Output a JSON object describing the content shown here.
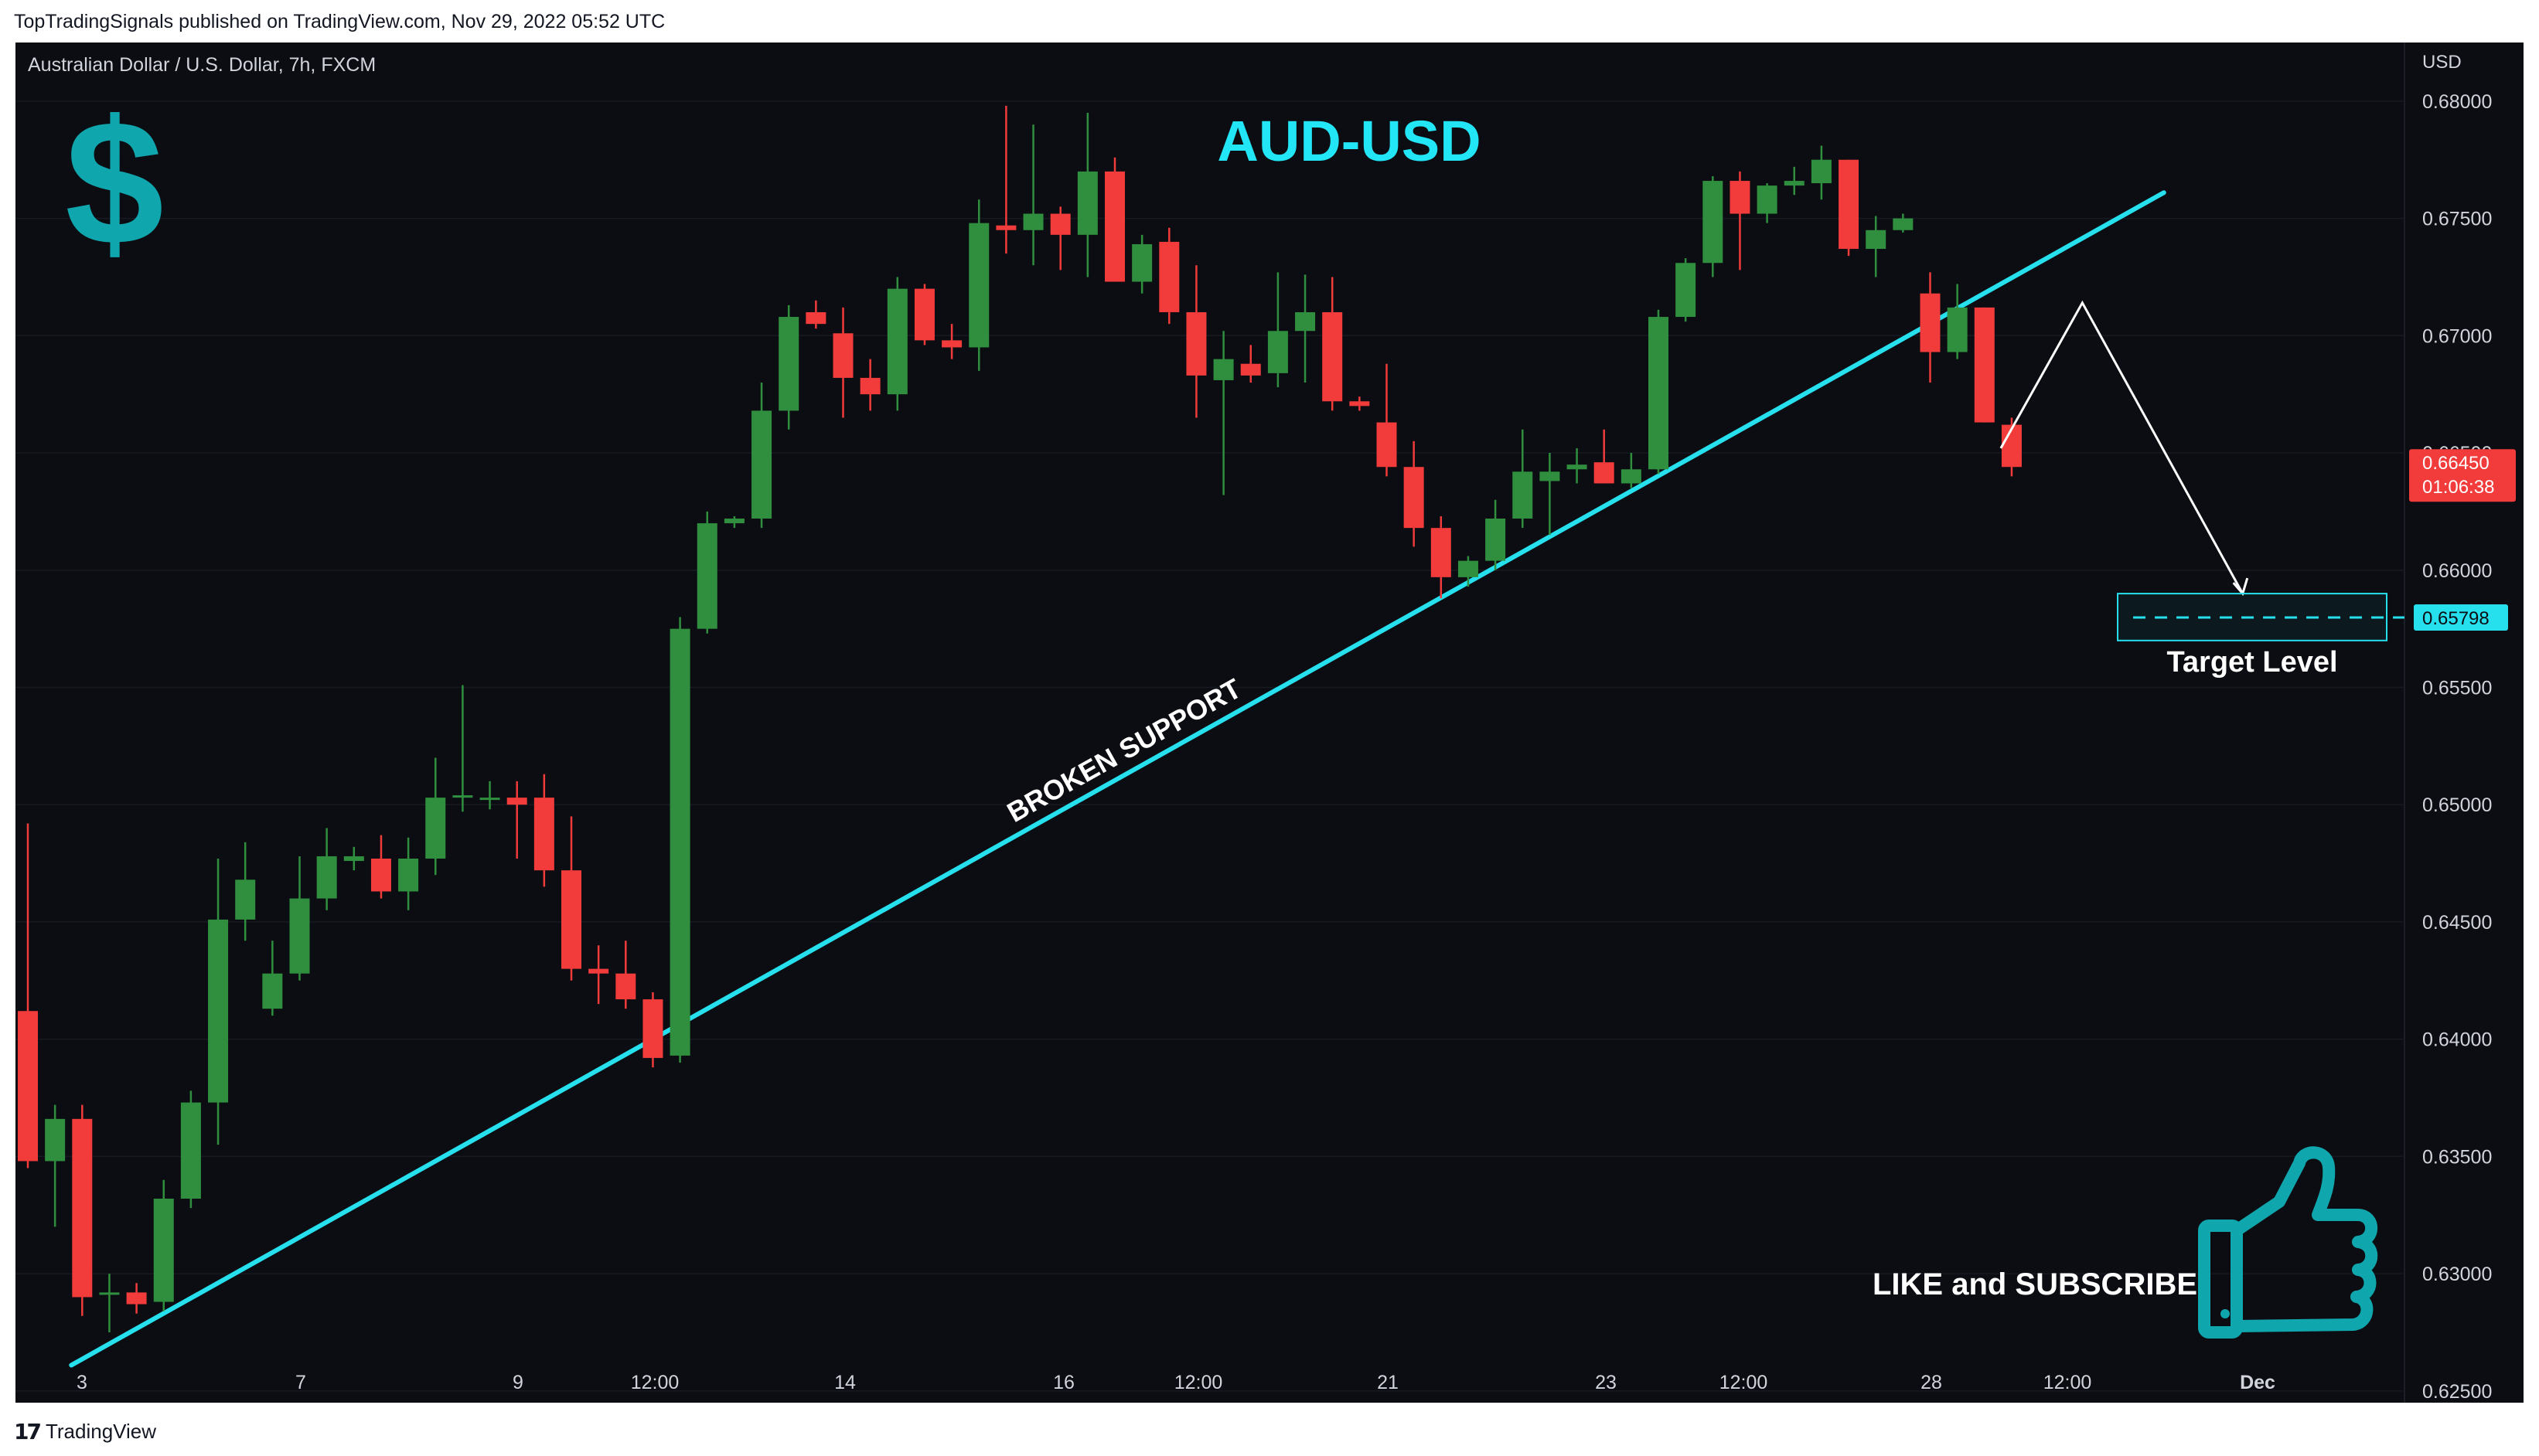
{
  "header": {
    "publish_line": "TopTradingSignals published on TradingView.com, Nov 29, 2022 05:52 UTC"
  },
  "footer": {
    "brand": "TradingView",
    "logo_glyph": "17"
  },
  "colors": {
    "background": "#0b0d12",
    "up": "#2f8f3e",
    "down": "#f23b3b",
    "trendline": "#26e0ee",
    "title": "#22e6f5",
    "icon": "#0fa7ad",
    "axis_text": "#d1d4dc",
    "grid": "#171a22"
  },
  "chart_data": {
    "type": "candlestick",
    "title": "AUD-USD",
    "symbol_label": "Australian Dollar / U.S. Dollar, 7h, FXCM",
    "currency_label": "USD",
    "ylim": [
      0.6245,
      0.6825
    ],
    "y_ticks": [
      "0.68000",
      "0.67500",
      "0.67000",
      "0.66500",
      "0.66000",
      "0.65500",
      "0.65000",
      "0.64500",
      "0.64000",
      "0.63500",
      "0.63000",
      "0.62500"
    ],
    "x_ticks": [
      "3",
      "7",
      "9",
      "12:00",
      "14",
      "16",
      "12:00",
      "21",
      "23",
      "12:00",
      "28",
      "12:00",
      "Dec"
    ],
    "last_price": {
      "value": 0.6645,
      "label": "0.66450",
      "countdown": "01:06:38"
    },
    "target_price": {
      "value": 0.65798,
      "label": "0.65798"
    },
    "annotations": {
      "trendline_label": "BROKEN SUPPORT",
      "target_label": "Target Level",
      "cta": "LIKE and SUBSCRIBE"
    },
    "icons": [
      "dollar-icon",
      "thumbs-up-icon"
    ],
    "trendline": {
      "from": {
        "bar": 1.6,
        "price": 0.6261
      },
      "to": {
        "bar": 78.6,
        "price": 0.6761
      }
    },
    "projection": [
      {
        "bar": 72.6,
        "price": 0.6652
      },
      {
        "bar": 75.6,
        "price": 0.6714
      },
      {
        "bar": 81.5,
        "price": 0.659
      }
    ],
    "target_box": {
      "bar_from": 76.9,
      "bar_to": 86.8,
      "price_top": 0.659,
      "price_bottom": 0.657
    },
    "candles": [
      {
        "o": 0.6412,
        "h": 0.6492,
        "l": 0.6345,
        "c": 0.6348
      },
      {
        "o": 0.6348,
        "h": 0.6372,
        "l": 0.632,
        "c": 0.6366
      },
      {
        "o": 0.6366,
        "h": 0.6372,
        "l": 0.6282,
        "c": 0.629
      },
      {
        "o": 0.6291,
        "h": 0.63,
        "l": 0.6275,
        "c": 0.6292
      },
      {
        "o": 0.6292,
        "h": 0.6296,
        "l": 0.6283,
        "c": 0.6287
      },
      {
        "o": 0.6288,
        "h": 0.634,
        "l": 0.6284,
        "c": 0.6332
      },
      {
        "o": 0.6332,
        "h": 0.6378,
        "l": 0.6328,
        "c": 0.6373
      },
      {
        "o": 0.6373,
        "h": 0.6477,
        "l": 0.6355,
        "c": 0.6451
      },
      {
        "o": 0.6451,
        "h": 0.6484,
        "l": 0.6442,
        "c": 0.6468
      },
      {
        "o": 0.6413,
        "h": 0.6442,
        "l": 0.641,
        "c": 0.6428
      },
      {
        "o": 0.6428,
        "h": 0.6478,
        "l": 0.6425,
        "c": 0.646
      },
      {
        "o": 0.646,
        "h": 0.649,
        "l": 0.6455,
        "c": 0.6478
      },
      {
        "o": 0.6476,
        "h": 0.6482,
        "l": 0.6472,
        "c": 0.6478
      },
      {
        "o": 0.6477,
        "h": 0.6487,
        "l": 0.646,
        "c": 0.6463
      },
      {
        "o": 0.6463,
        "h": 0.6486,
        "l": 0.6455,
        "c": 0.6477
      },
      {
        "o": 0.6477,
        "h": 0.652,
        "l": 0.647,
        "c": 0.6503
      },
      {
        "o": 0.6503,
        "h": 0.6551,
        "l": 0.6497,
        "c": 0.6504
      },
      {
        "o": 0.6503,
        "h": 0.651,
        "l": 0.6498,
        "c": 0.6503
      },
      {
        "o": 0.6503,
        "h": 0.651,
        "l": 0.6477,
        "c": 0.65
      },
      {
        "o": 0.6503,
        "h": 0.6513,
        "l": 0.6465,
        "c": 0.6472
      },
      {
        "o": 0.6472,
        "h": 0.6495,
        "l": 0.6425,
        "c": 0.643
      },
      {
        "o": 0.643,
        "h": 0.644,
        "l": 0.6415,
        "c": 0.6428
      },
      {
        "o": 0.6428,
        "h": 0.6442,
        "l": 0.6413,
        "c": 0.6417
      },
      {
        "o": 0.6417,
        "h": 0.642,
        "l": 0.6388,
        "c": 0.6392
      },
      {
        "o": 0.6393,
        "h": 0.658,
        "l": 0.639,
        "c": 0.6575
      },
      {
        "o": 0.6575,
        "h": 0.6625,
        "l": 0.6573,
        "c": 0.662
      },
      {
        "o": 0.662,
        "h": 0.6623,
        "l": 0.6618,
        "c": 0.6622
      },
      {
        "o": 0.6622,
        "h": 0.668,
        "l": 0.6618,
        "c": 0.6668
      },
      {
        "o": 0.6668,
        "h": 0.6713,
        "l": 0.666,
        "c": 0.6708
      },
      {
        "o": 0.671,
        "h": 0.6715,
        "l": 0.6703,
        "c": 0.6705
      },
      {
        "o": 0.6701,
        "h": 0.6712,
        "l": 0.6665,
        "c": 0.6682
      },
      {
        "o": 0.6682,
        "h": 0.669,
        "l": 0.6668,
        "c": 0.6675
      },
      {
        "o": 0.6675,
        "h": 0.6725,
        "l": 0.6668,
        "c": 0.672
      },
      {
        "o": 0.672,
        "h": 0.6722,
        "l": 0.6696,
        "c": 0.6698
      },
      {
        "o": 0.6698,
        "h": 0.6705,
        "l": 0.669,
        "c": 0.6695
      },
      {
        "o": 0.6695,
        "h": 0.6758,
        "l": 0.6685,
        "c": 0.6748
      },
      {
        "o": 0.6747,
        "h": 0.6798,
        "l": 0.6735,
        "c": 0.6745
      },
      {
        "o": 0.6745,
        "h": 0.679,
        "l": 0.673,
        "c": 0.6752
      },
      {
        "o": 0.6752,
        "h": 0.6755,
        "l": 0.6728,
        "c": 0.6743
      },
      {
        "o": 0.6743,
        "h": 0.6795,
        "l": 0.6725,
        "c": 0.677
      },
      {
        "o": 0.677,
        "h": 0.6776,
        "l": 0.6725,
        "c": 0.6723
      },
      {
        "o": 0.6723,
        "h": 0.6743,
        "l": 0.6718,
        "c": 0.6739
      },
      {
        "o": 0.674,
        "h": 0.6746,
        "l": 0.6705,
        "c": 0.671
      },
      {
        "o": 0.671,
        "h": 0.673,
        "l": 0.6665,
        "c": 0.6683
      },
      {
        "o": 0.6681,
        "h": 0.6702,
        "l": 0.6632,
        "c": 0.669
      },
      {
        "o": 0.6688,
        "h": 0.6696,
        "l": 0.668,
        "c": 0.6683
      },
      {
        "o": 0.6684,
        "h": 0.6727,
        "l": 0.6678,
        "c": 0.6702
      },
      {
        "o": 0.6702,
        "h": 0.6726,
        "l": 0.668,
        "c": 0.671
      },
      {
        "o": 0.671,
        "h": 0.6725,
        "l": 0.6668,
        "c": 0.6672
      },
      {
        "o": 0.6672,
        "h": 0.6674,
        "l": 0.6668,
        "c": 0.667
      },
      {
        "o": 0.6663,
        "h": 0.6688,
        "l": 0.664,
        "c": 0.6644
      },
      {
        "o": 0.6644,
        "h": 0.6655,
        "l": 0.661,
        "c": 0.6618
      },
      {
        "o": 0.6618,
        "h": 0.6623,
        "l": 0.6588,
        "c": 0.6597
      },
      {
        "o": 0.6597,
        "h": 0.6606,
        "l": 0.6593,
        "c": 0.6604
      },
      {
        "o": 0.6604,
        "h": 0.663,
        "l": 0.66,
        "c": 0.6622
      },
      {
        "o": 0.6622,
        "h": 0.666,
        "l": 0.6618,
        "c": 0.6642
      },
      {
        "o": 0.6638,
        "h": 0.665,
        "l": 0.6615,
        "c": 0.6642
      },
      {
        "o": 0.6643,
        "h": 0.6652,
        "l": 0.6637,
        "c": 0.6645
      },
      {
        "o": 0.6646,
        "h": 0.666,
        "l": 0.6638,
        "c": 0.6637
      },
      {
        "o": 0.6637,
        "h": 0.665,
        "l": 0.6635,
        "c": 0.6643
      },
      {
        "o": 0.6643,
        "h": 0.6711,
        "l": 0.6641,
        "c": 0.6708
      },
      {
        "o": 0.6708,
        "h": 0.6733,
        "l": 0.6706,
        "c": 0.6731
      },
      {
        "o": 0.6731,
        "h": 0.6768,
        "l": 0.6725,
        "c": 0.6766
      },
      {
        "o": 0.6766,
        "h": 0.677,
        "l": 0.6728,
        "c": 0.6752
      },
      {
        "o": 0.6752,
        "h": 0.6765,
        "l": 0.6748,
        "c": 0.6764
      },
      {
        "o": 0.6764,
        "h": 0.6772,
        "l": 0.676,
        "c": 0.6766
      },
      {
        "o": 0.6765,
        "h": 0.6781,
        "l": 0.6758,
        "c": 0.6775
      },
      {
        "o": 0.6775,
        "h": 0.6775,
        "l": 0.6734,
        "c": 0.6737
      },
      {
        "o": 0.6737,
        "h": 0.6751,
        "l": 0.6725,
        "c": 0.6745
      },
      {
        "o": 0.6745,
        "h": 0.6752,
        "l": 0.6744,
        "c": 0.675
      },
      {
        "o": 0.6718,
        "h": 0.6727,
        "l": 0.668,
        "c": 0.6693
      },
      {
        "o": 0.6693,
        "h": 0.6722,
        "l": 0.669,
        "c": 0.6712
      },
      {
        "o": 0.6712,
        "h": 0.6712,
        "l": 0.6663,
        "c": 0.6663
      },
      {
        "o": 0.6662,
        "h": 0.6665,
        "l": 0.664,
        "c": 0.6644
      }
    ]
  }
}
